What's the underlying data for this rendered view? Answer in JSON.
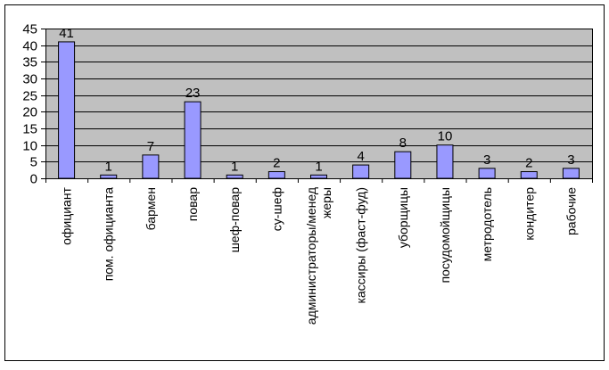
{
  "chart_data": {
    "type": "bar",
    "title": "",
    "xlabel": "",
    "ylabel": "",
    "ylim": [
      0,
      45
    ],
    "yticks": [
      0,
      5,
      10,
      15,
      20,
      25,
      30,
      35,
      40,
      45
    ],
    "grid": true,
    "legend": "none",
    "categories": [
      "официант",
      "пом. официанта",
      "бармен",
      "повар",
      "шеф-повар",
      "су-шеф",
      [
        "администраторы/менед",
        "жеры"
      ],
      "кассиры (фаст-фуд)",
      "уборщицы",
      "посудомойщицы",
      "метродотель",
      "кондитер",
      "рабочие"
    ],
    "values": [
      41,
      1,
      7,
      23,
      1,
      2,
      1,
      4,
      8,
      10,
      3,
      2,
      3
    ]
  },
  "colors": {
    "plot_background": "#c0c0c0",
    "bar_fill": "#9999ff",
    "bar_stroke": "#000000",
    "gridline": "#000000",
    "frame": "#000000"
  }
}
